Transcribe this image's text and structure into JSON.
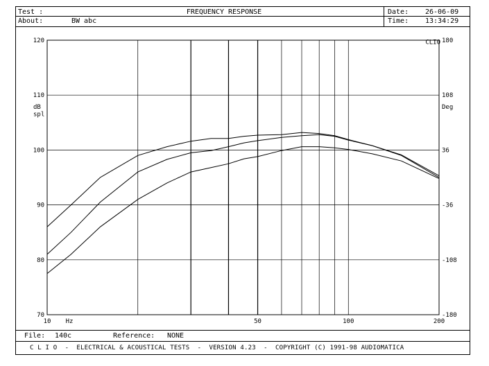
{
  "header": {
    "test_label": "Test :",
    "about_label": "About:",
    "about_value": "BW abc",
    "title": "FREQUENCY RESPONSE",
    "date_label": "Date:",
    "date_value": "26-06-09",
    "time_label": "Time:",
    "time_value": "13:34:29"
  },
  "plot": {
    "left_unit_top": "dB",
    "left_unit_bottom": "spl",
    "right_unit": "Deg",
    "right_corner_label": "CLIO",
    "x_unit": "Hz",
    "left_ticks": [
      "120",
      "110",
      "100",
      "90",
      "80",
      "70"
    ],
    "right_ticks": [
      "180",
      "108",
      "36",
      "-36",
      "-108",
      "-180"
    ],
    "x_tick_labels": [
      {
        "f": 10,
        "label": "10"
      },
      {
        "f": 50,
        "label": "50"
      },
      {
        "f": 100,
        "label": "100"
      },
      {
        "f": 200,
        "label": "200"
      }
    ],
    "x_grid": [
      10,
      20,
      30,
      40,
      50,
      60,
      70,
      80,
      90,
      100,
      200
    ],
    "y_grid_db": [
      70,
      80,
      90,
      100,
      110,
      120
    ],
    "line_color": "#000000"
  },
  "chart_data": {
    "type": "line",
    "xlabel": "Hz",
    "ylabel": "dB spl",
    "xscale": "log",
    "xlim": [
      10,
      200
    ],
    "ylim": [
      70,
      120
    ],
    "y2lim": [
      -180,
      180
    ],
    "y2label": "Deg",
    "grid": true,
    "series": [
      {
        "x": [
          10,
          12,
          15,
          20,
          25,
          30,
          35,
          40,
          45,
          50,
          60,
          70,
          80,
          90,
          100,
          120,
          150,
          200
        ],
        "values": [
          86,
          90,
          95,
          99,
          100.6,
          101.6,
          102.1,
          102.1,
          102.5,
          102.7,
          102.8,
          103.2,
          103.0,
          102.6,
          101.9,
          100.8,
          99.0,
          95.0
        ]
      },
      {
        "x": [
          10,
          12,
          15,
          20,
          25,
          30,
          35,
          40,
          45,
          50,
          60,
          70,
          80,
          90,
          100,
          120,
          150,
          200
        ],
        "values": [
          81,
          85,
          90.5,
          96,
          98.3,
          99.5,
          99.9,
          100.6,
          101.3,
          101.7,
          102.3,
          102.6,
          102.8,
          102.5,
          101.8,
          100.8,
          99.1,
          95.3
        ]
      },
      {
        "x": [
          10,
          12,
          15,
          20,
          25,
          30,
          35,
          40,
          45,
          50,
          60,
          70,
          80,
          90,
          100,
          120,
          150,
          200
        ],
        "values": [
          77.5,
          81,
          86,
          91,
          94,
          96,
          96.8,
          97.5,
          98.4,
          98.8,
          99.9,
          100.6,
          100.6,
          100.4,
          100.1,
          99.3,
          98.0,
          94.8
        ]
      }
    ]
  },
  "bottom": {
    "file_label": "File:",
    "file_value": "140c",
    "reference_label": "Reference:",
    "reference_value": "NONE"
  },
  "footer": {
    "text": "C L I O  -  ELECTRICAL & ACOUSTICAL TESTS  -  VERSION 4.23  -  COPYRIGHT (C) 1991-98 AUDIOMATICA"
  }
}
